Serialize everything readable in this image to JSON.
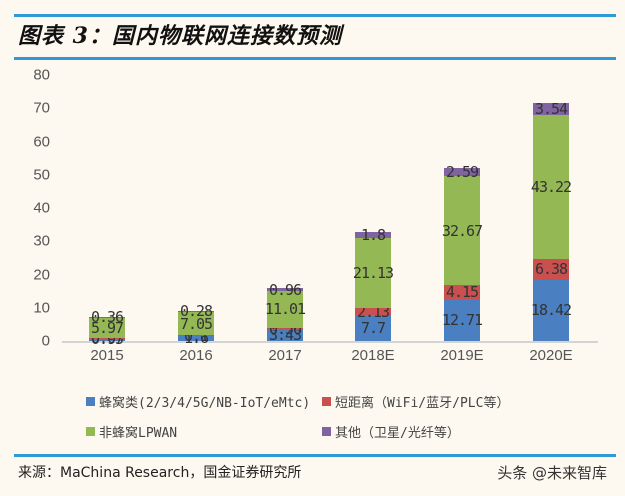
{
  "header": {
    "title": "图表 3：国内物联网连接数预测"
  },
  "footer": {
    "source": "来源：MaChina Research，国金证券研究所",
    "watermark": "头条 @未来智库"
  },
  "colors": {
    "rule": "#2f9ad6",
    "cellular": "#4a7fc1",
    "short_range": "#c9504f",
    "lpwan": "#94b954",
    "other": "#8064a2"
  },
  "chart_data": {
    "type": "bar",
    "stacked": true,
    "title": "国内物联网连接数预测",
    "xlabel": "",
    "ylabel": "",
    "ylim": [
      0,
      80
    ],
    "yticks": [
      0,
      10,
      20,
      30,
      40,
      50,
      60,
      70,
      80
    ],
    "grid": false,
    "legend_position": "bottom",
    "categories": [
      "2015",
      "2016",
      "2017",
      "2018E",
      "2019E",
      "2020E"
    ],
    "series": [
      {
        "name": "蜂窝类(2/3/4/5G/NB-IoT/eMtc)",
        "color": "#4a7fc1",
        "values": [
          0.95,
          1.6,
          3.43,
          7.7,
          12.71,
          18.42
        ]
      },
      {
        "name": "短距离（WiFi/蓝牙/PLC等）",
        "color": "#c9504f",
        "values": [
          0.07,
          0.1,
          0.56,
          2.13,
          4.15,
          6.38
        ]
      },
      {
        "name": "非蜂窝LPWAN",
        "color": "#94b954",
        "values": [
          5.97,
          7.05,
          11.01,
          21.13,
          32.67,
          43.22
        ]
      },
      {
        "name": "其他（卫星/光纤等）",
        "color": "#8064a2",
        "values": [
          0.36,
          0.28,
          0.96,
          1.8,
          2.59,
          3.54
        ]
      }
    ],
    "value_labels": [
      [
        "0.95",
        "1.6",
        "3.43",
        "7.7",
        "12.71",
        "18.42"
      ],
      [
        "0.07",
        "0.1",
        "0.56",
        "2.13",
        "4.15",
        "6.38"
      ],
      [
        "5.97",
        "7.05",
        "11.01",
        "21.13",
        "32.67",
        "43.22"
      ],
      [
        "0.36",
        "0.28",
        "0.96",
        "1.8",
        "2.59",
        "3.54"
      ]
    ]
  }
}
